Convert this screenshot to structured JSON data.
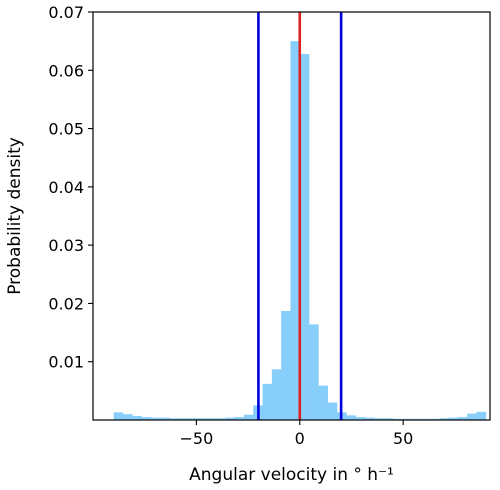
{
  "chart_data": {
    "type": "bar",
    "title": "",
    "xlabel": "Angular velocity in ° h⁻¹",
    "ylabel": "Probability density",
    "xlim": [
      -100,
      92
    ],
    "ylim": [
      0,
      0.07
    ],
    "xticks": [
      -50,
      0,
      50
    ],
    "xtick_labels": [
      "−50",
      "0",
      "50"
    ],
    "yticks": [
      0.01,
      0.02,
      0.03,
      0.04,
      0.05,
      0.06,
      0.07
    ],
    "ytick_labels": [
      "0.01",
      "0.02",
      "0.03",
      "0.04",
      "0.05",
      "0.06",
      "0.07"
    ],
    "grid": false,
    "bin_width": 4.5,
    "bins": [
      {
        "x0": -90,
        "x1": -85.5,
        "value": 0.0013
      },
      {
        "x0": -85.5,
        "x1": -81,
        "value": 0.001
      },
      {
        "x0": -81,
        "x1": -76.5,
        "value": 0.0007
      },
      {
        "x0": -76.5,
        "x1": -72,
        "value": 0.0005
      },
      {
        "x0": -72,
        "x1": -67.5,
        "value": 0.0004
      },
      {
        "x0": -67.5,
        "x1": -63,
        "value": 0.0004
      },
      {
        "x0": -63,
        "x1": -58.5,
        "value": 0.0003
      },
      {
        "x0": -58.5,
        "x1": -54,
        "value": 0.0003
      },
      {
        "x0": -54,
        "x1": -49.5,
        "value": 0.0003
      },
      {
        "x0": -49.5,
        "x1": -45,
        "value": 0.0003
      },
      {
        "x0": -45,
        "x1": -40.5,
        "value": 0.0003
      },
      {
        "x0": -40.5,
        "x1": -36,
        "value": 0.0003
      },
      {
        "x0": -36,
        "x1": -31.5,
        "value": 0.0004
      },
      {
        "x0": -31.5,
        "x1": -27,
        "value": 0.0005
      },
      {
        "x0": -27,
        "x1": -22.5,
        "value": 0.0009
      },
      {
        "x0": -22.5,
        "x1": -18,
        "value": 0.0025
      },
      {
        "x0": -18,
        "x1": -13.5,
        "value": 0.0062
      },
      {
        "x0": -13.5,
        "x1": -9,
        "value": 0.0087
      },
      {
        "x0": -9,
        "x1": -4.5,
        "value": 0.0187
      },
      {
        "x0": -4.5,
        "x1": 0,
        "value": 0.065
      },
      {
        "x0": 0,
        "x1": 4.5,
        "value": 0.0628
      },
      {
        "x0": 4.5,
        "x1": 9,
        "value": 0.0164
      },
      {
        "x0": 9,
        "x1": 13.5,
        "value": 0.0059
      },
      {
        "x0": 13.5,
        "x1": 18,
        "value": 0.003
      },
      {
        "x0": 18,
        "x1": 22.5,
        "value": 0.0013
      },
      {
        "x0": 22.5,
        "x1": 27,
        "value": 0.0008
      },
      {
        "x0": 27,
        "x1": 31.5,
        "value": 0.0005
      },
      {
        "x0": 31.5,
        "x1": 36,
        "value": 0.0004
      },
      {
        "x0": 36,
        "x1": 40.5,
        "value": 0.0003
      },
      {
        "x0": 40.5,
        "x1": 45,
        "value": 0.0003
      },
      {
        "x0": 45,
        "x1": 49.5,
        "value": 0.0002
      },
      {
        "x0": 49.5,
        "x1": 54,
        "value": 0.0002
      },
      {
        "x0": 54,
        "x1": 58.5,
        "value": 0.0002
      },
      {
        "x0": 58.5,
        "x1": 63,
        "value": 0.0002
      },
      {
        "x0": 63,
        "x1": 67.5,
        "value": 0.0002
      },
      {
        "x0": 67.5,
        "x1": 72,
        "value": 0.0003
      },
      {
        "x0": 72,
        "x1": 76.5,
        "value": 0.0004
      },
      {
        "x0": 76.5,
        "x1": 81,
        "value": 0.0005
      },
      {
        "x0": 81,
        "x1": 85.5,
        "value": 0.0011
      },
      {
        "x0": 85.5,
        "x1": 90,
        "value": 0.0014
      }
    ],
    "vertical_lines": [
      {
        "x": -20,
        "color": "#0000dd"
      },
      {
        "x": 0,
        "color": "#dd2020"
      },
      {
        "x": 20,
        "color": "#0000dd"
      }
    ],
    "bar_color": "#87cefa"
  }
}
